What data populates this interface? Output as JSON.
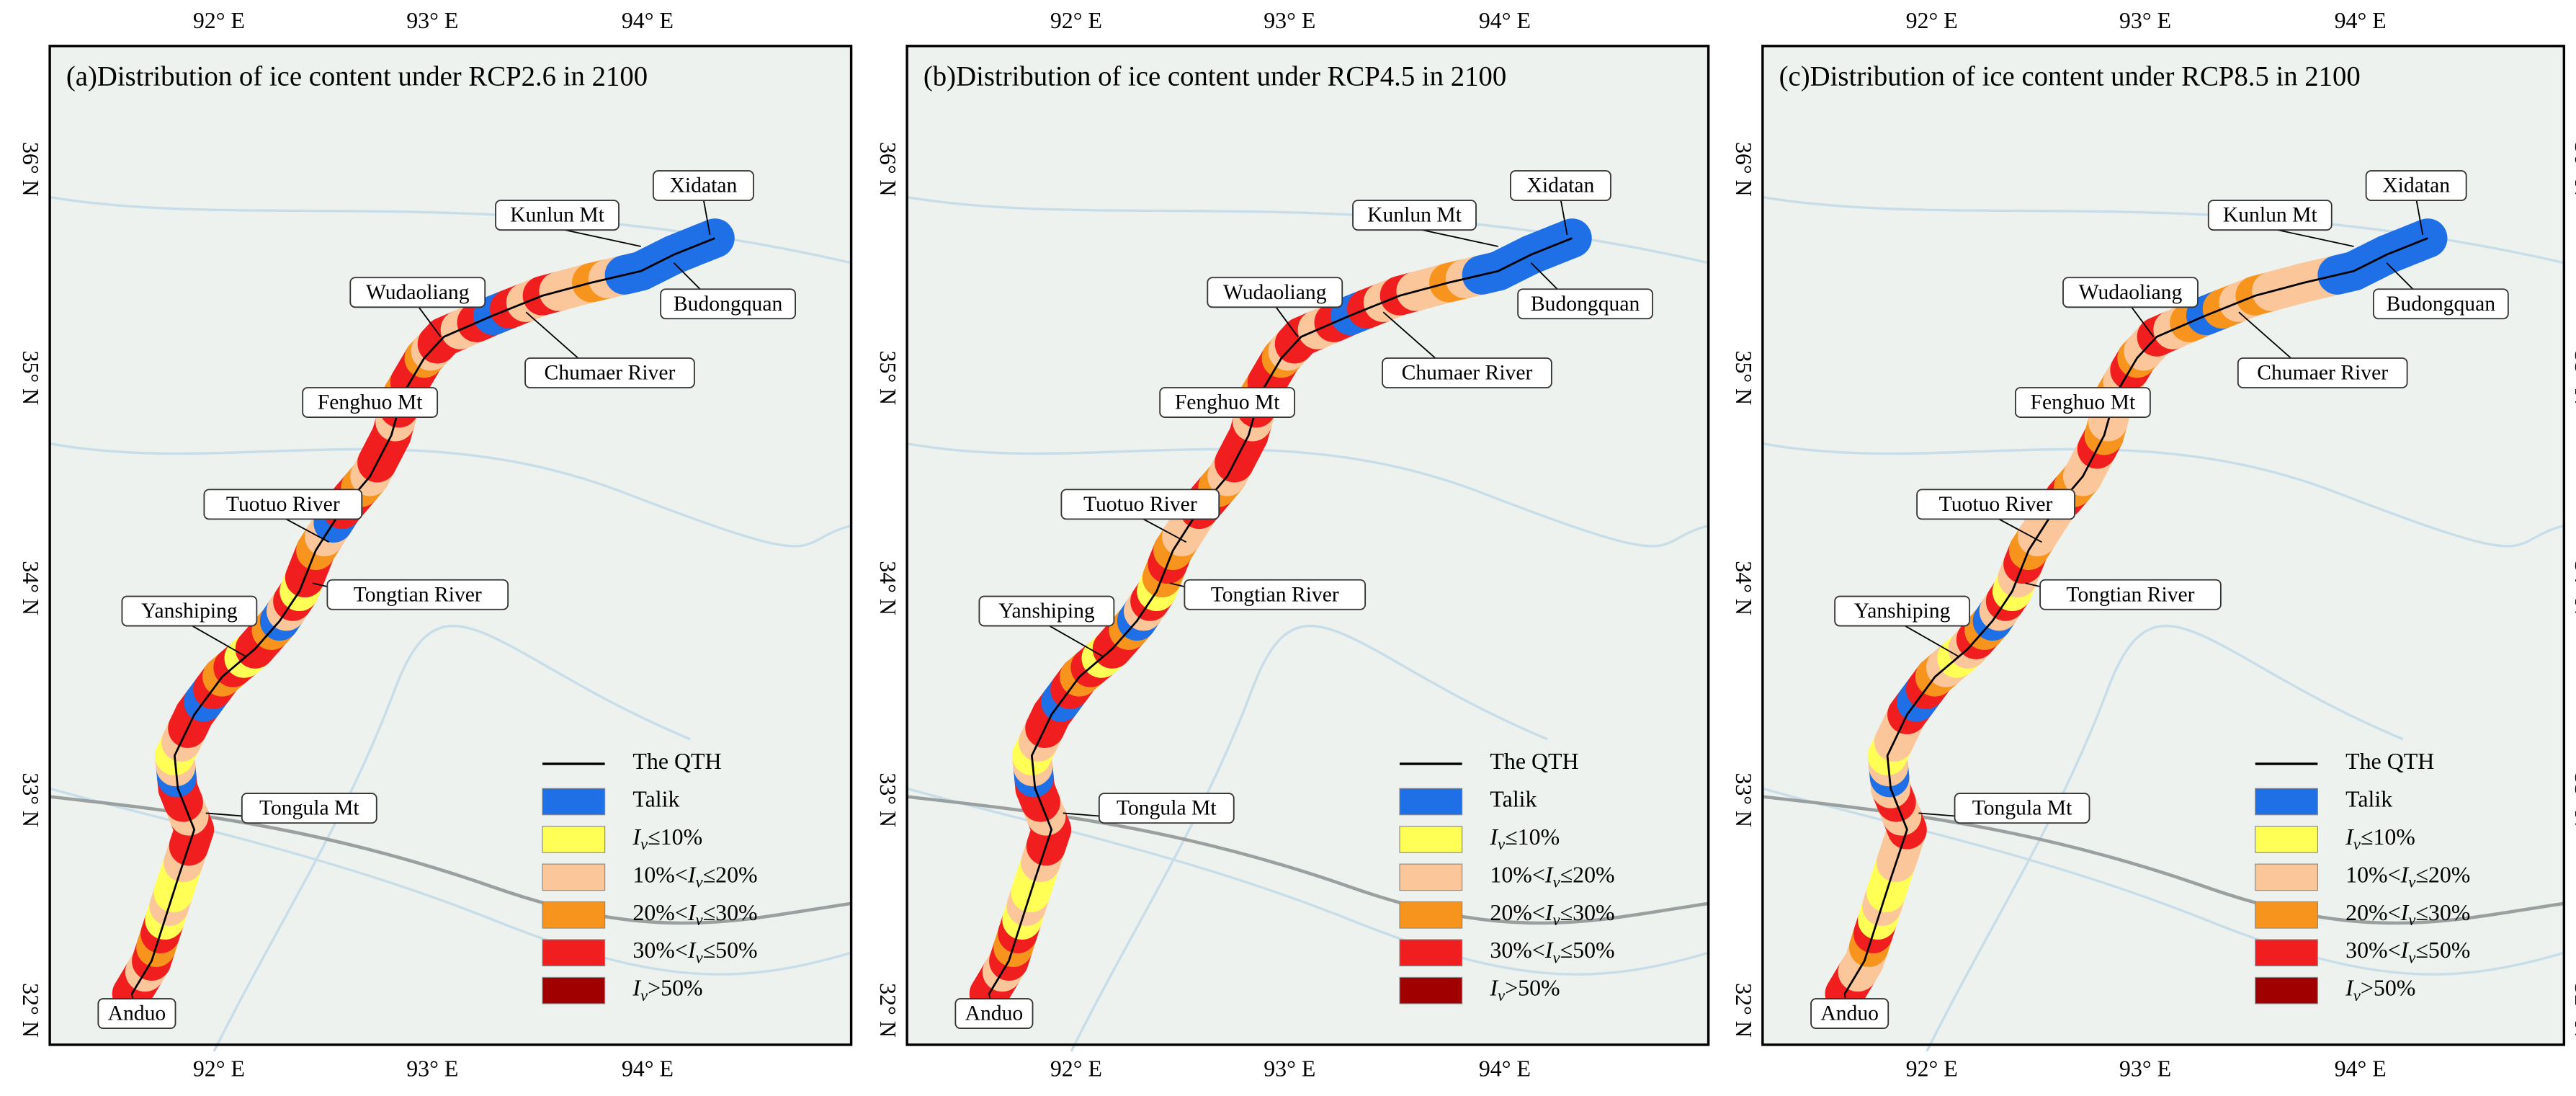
{
  "panels": [
    {
      "title": "(a)Distribution of ice content under RCP2.6 in 2100"
    },
    {
      "title": "(b)Distribution of ice content under RCP4.5 in 2100"
    },
    {
      "title": "(c)Distribution of ice content under RCP8.5 in 2100"
    }
  ],
  "x_ticks": [
    "92° E",
    "93° E",
    "94° E"
  ],
  "y_ticks": [
    "32° N",
    "33° N",
    "34° N",
    "35° N",
    "36° N"
  ],
  "places": [
    "Xidatan",
    "Kunlun Mt",
    "Budongquan",
    "Wudaoliang",
    "Chumaer River",
    "Fenghuo Mt",
    "Tuotuo River",
    "Tongtian River",
    "Yanshiping",
    "Tongula Mt",
    "Anduo"
  ],
  "legend": [
    {
      "parts": [
        "The QTH"
      ],
      "color": "#000000",
      "kind": "line"
    },
    {
      "parts": [
        "Talik"
      ],
      "color": "#1f6fe6",
      "kind": "box"
    },
    {
      "parts": [
        "I",
        "v",
        "≤10%"
      ],
      "color": "#ffff55",
      "kind": "box"
    },
    {
      "parts": [
        "10%<",
        "I",
        "v",
        "≤20%"
      ],
      "color": "#fbc79a",
      "kind": "box"
    },
    {
      "parts": [
        "20%<",
        "I",
        "v",
        "≤30%"
      ],
      "color": "#f7941d",
      "kind": "box"
    },
    {
      "parts": [
        "30%<",
        "I",
        "v",
        "≤50%"
      ],
      "color": "#f01e1e",
      "kind": "box"
    },
    {
      "parts": [
        "I",
        "v",
        ">50%"
      ],
      "color": "#a00000",
      "kind": "box"
    }
  ]
}
